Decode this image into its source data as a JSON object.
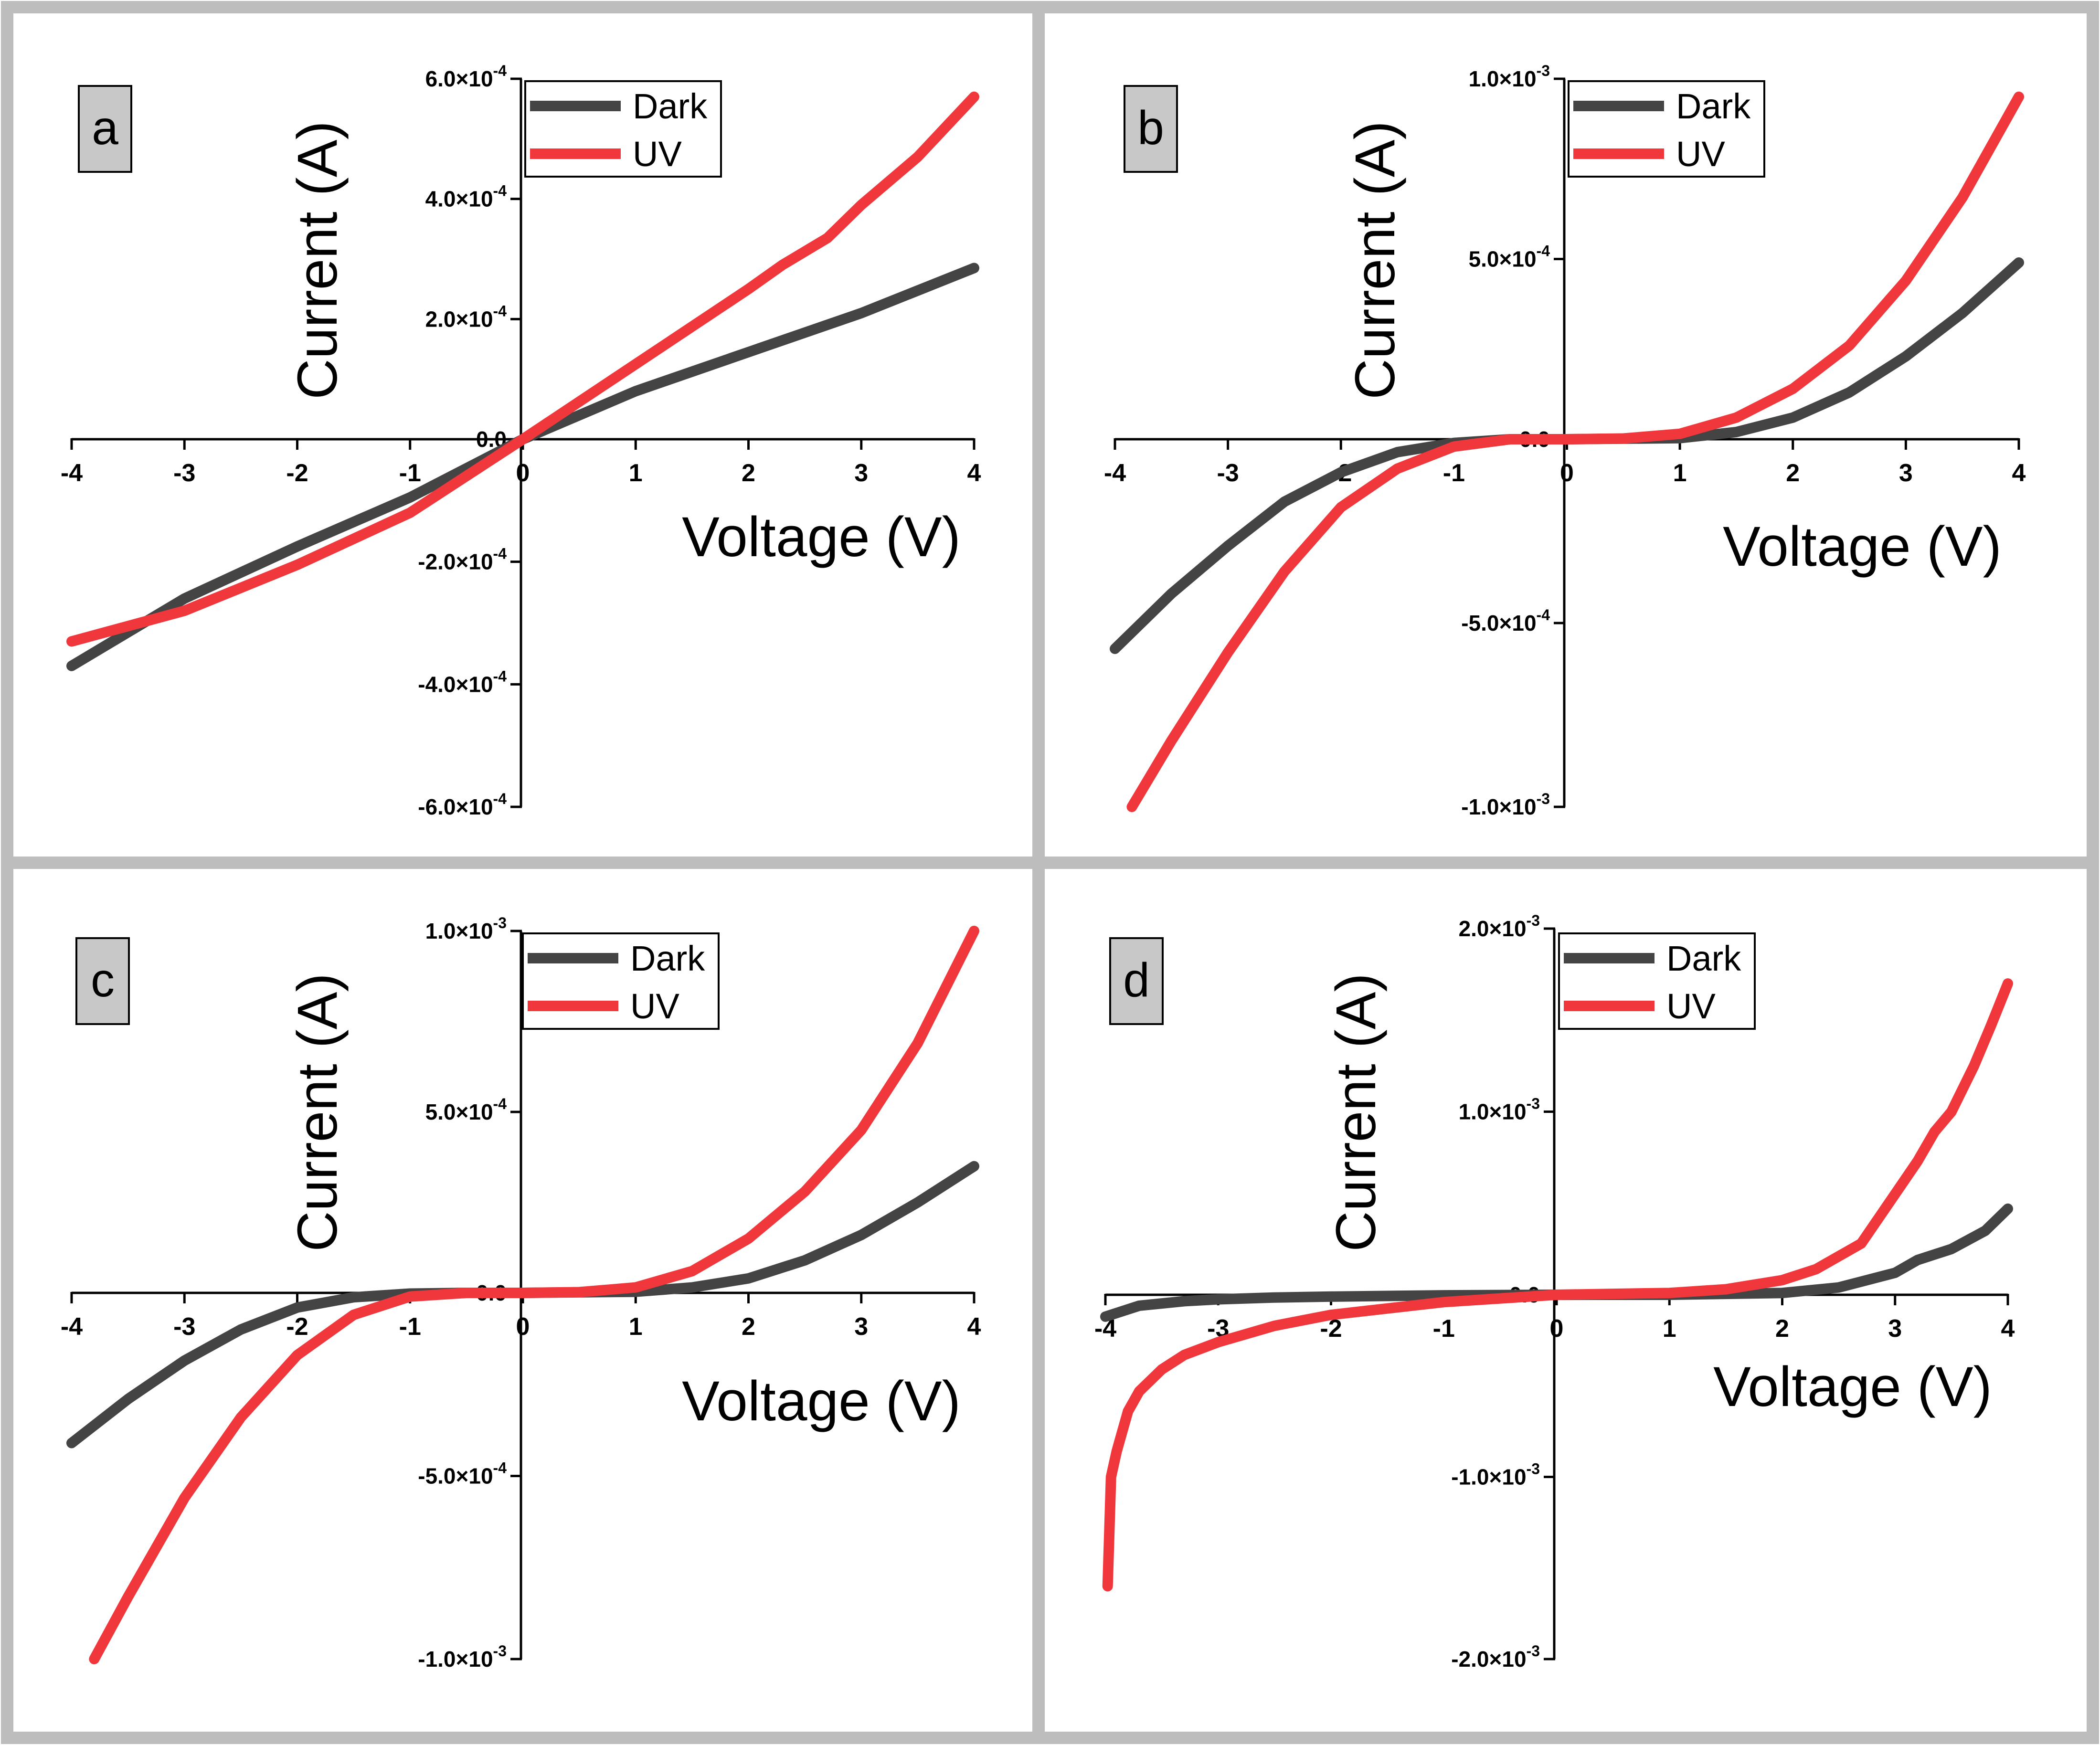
{
  "figure": {
    "colors": {
      "frame": "#bdbdbd",
      "dark": "#444444",
      "uv": "#f0373c",
      "label_bg": "#c8c8c8"
    }
  },
  "chart_data": [
    {
      "panel": "a",
      "type": "line",
      "xlabel": "Voltage (V)",
      "ylabel": "Current (A)",
      "xlim": [
        -4,
        4
      ],
      "ylim": [
        -0.0006,
        0.0006
      ],
      "xticks": [
        "-4",
        "-3",
        "-2",
        "-1",
        "0",
        "1",
        "2",
        "3",
        "4"
      ],
      "yticks": [
        {
          "v": 0.0006,
          "m": "6.0",
          "e": "-4"
        },
        {
          "v": 0.0004,
          "m": "4.0",
          "e": "-4"
        },
        {
          "v": 0.0002,
          "m": "2.0",
          "e": "-4"
        },
        {
          "v": 0.0,
          "m": "0.0",
          "e": ""
        },
        {
          "v": -0.0002,
          "m": "-2.0",
          "e": "-4"
        },
        {
          "v": -0.0004,
          "m": "-4.0",
          "e": "-4"
        },
        {
          "v": -0.0006,
          "m": "-6.0",
          "e": "-4"
        }
      ],
      "legend": [
        "Dark",
        "UV"
      ],
      "series": [
        {
          "name": "Dark",
          "x": [
            -4,
            -3,
            -2,
            -1,
            0,
            1,
            2,
            3,
            4
          ],
          "y": [
            -0.00037,
            -0.00026,
            -0.000175,
            -9.5e-05,
            0,
            8e-05,
            0.000145,
            0.00021,
            0.000285
          ]
        },
        {
          "name": "UV",
          "x": [
            -4,
            -3.5,
            -3,
            -2,
            -1,
            0,
            1,
            2,
            2.3,
            2.7,
            3,
            3.5,
            4
          ],
          "y": [
            -0.00033,
            -0.000305,
            -0.00028,
            -0.000205,
            -0.00012,
            0,
            0.000125,
            0.00025,
            0.00029,
            0.000335,
            0.00039,
            0.00047,
            0.00057
          ]
        }
      ]
    },
    {
      "panel": "b",
      "type": "line",
      "xlabel": "Voltage (V)",
      "ylabel": "Current (A)",
      "xlim": [
        -4,
        4
      ],
      "ylim": [
        -0.001,
        0.001
      ],
      "xticks": [
        "-4",
        "-3",
        "-2",
        "-1",
        "0",
        "1",
        "2",
        "3",
        "4"
      ],
      "yticks": [
        {
          "v": 0.001,
          "m": "1.0",
          "e": "-3"
        },
        {
          "v": 0.0005,
          "m": "5.0",
          "e": "-4"
        },
        {
          "v": 0.0,
          "m": "0.0",
          "e": ""
        },
        {
          "v": -0.0005,
          "m": "-5.0",
          "e": "-4"
        },
        {
          "v": -0.001,
          "m": "-1.0",
          "e": "-3"
        }
      ],
      "legend": [
        "Dark",
        "UV"
      ],
      "series": [
        {
          "name": "Dark",
          "x": [
            -4,
            -3.5,
            -3,
            -2.5,
            -2,
            -1.5,
            -1,
            -0.5,
            0,
            1,
            1.5,
            2,
            2.5,
            3,
            3.5,
            4
          ],
          "y": [
            -0.00057,
            -0.00042,
            -0.00029,
            -0.00017,
            -9e-05,
            -3.5e-05,
            -1e-05,
            0,
            0,
            3e-06,
            2e-05,
            6e-05,
            0.00013,
            0.00023,
            0.00035,
            0.00049
          ]
        },
        {
          "name": "UV",
          "x": [
            -3.85,
            -3.5,
            -3,
            -2.5,
            -2,
            -1.5,
            -1,
            -0.5,
            0,
            0.5,
            1,
            1.5,
            2,
            2.5,
            3,
            3.5,
            4
          ],
          "y": [
            -0.001,
            -0.00082,
            -0.00058,
            -0.00036,
            -0.000185,
            -8e-05,
            -2e-05,
            0,
            0,
            2e-06,
            1.5e-05,
            6e-05,
            0.00014,
            0.00026,
            0.00044,
            0.00067,
            0.00095
          ]
        }
      ]
    },
    {
      "panel": "c",
      "type": "line",
      "xlabel": "Voltage (V)",
      "ylabel": "Current (A)",
      "xlim": [
        -4,
        4
      ],
      "ylim": [
        -0.001,
        0.001
      ],
      "xticks": [
        "-4",
        "-3",
        "-2",
        "-1",
        "0",
        "1",
        "2",
        "3",
        "4"
      ],
      "yticks": [
        {
          "v": 0.001,
          "m": "1.0",
          "e": "-3"
        },
        {
          "v": 0.0005,
          "m": "5.0",
          "e": "-4"
        },
        {
          "v": 0.0,
          "m": "0.0",
          "e": ""
        },
        {
          "v": -0.0005,
          "m": "-5.0",
          "e": "-4"
        },
        {
          "v": -0.001,
          "m": "-1.0",
          "e": "-3"
        }
      ],
      "legend": [
        "Dark",
        "UV"
      ],
      "series": [
        {
          "name": "Dark",
          "x": [
            -4,
            -3.5,
            -3,
            -2.5,
            -2,
            -1.5,
            -1,
            -0.5,
            0,
            1,
            1.5,
            2,
            2.5,
            3,
            3.5,
            4
          ],
          "y": [
            -0.00041,
            -0.00029,
            -0.000185,
            -0.0001,
            -4e-05,
            -1.2e-05,
            -2e-06,
            0,
            0,
            3e-06,
            1.5e-05,
            4e-05,
            9e-05,
            0.00016,
            0.00025,
            0.00035
          ]
        },
        {
          "name": "UV",
          "x": [
            -3.8,
            -3.5,
            -3,
            -2.5,
            -2,
            -1.5,
            -1,
            -0.5,
            0,
            0.5,
            1,
            1.5,
            2,
            2.5,
            3,
            3.5,
            4
          ],
          "y": [
            -0.001,
            -0.00083,
            -0.00056,
            -0.00034,
            -0.00017,
            -6e-05,
            -1e-05,
            0,
            0,
            2e-06,
            1.5e-05,
            6e-05,
            0.00015,
            0.00028,
            0.00045,
            0.00069,
            0.001
          ]
        }
      ]
    },
    {
      "panel": "d",
      "type": "line",
      "xlabel": "Voltage (V)",
      "ylabel": "Current (A)",
      "xlim": [
        -4,
        4
      ],
      "ylim": [
        -0.002,
        0.002
      ],
      "xticks": [
        "-4",
        "-3",
        "-2",
        "-1",
        "0",
        "1",
        "2",
        "3",
        "4"
      ],
      "yticks": [
        {
          "v": 0.002,
          "m": "2.0",
          "e": "-3"
        },
        {
          "v": 0.001,
          "m": "1.0",
          "e": "-3"
        },
        {
          "v": 0.0,
          "m": "0.0",
          "e": ""
        },
        {
          "v": -0.001,
          "m": "-1.0",
          "e": "-3"
        },
        {
          "v": -0.002,
          "m": "-2.0",
          "e": "-3"
        }
      ],
      "legend": [
        "Dark",
        "UV"
      ],
      "series": [
        {
          "name": "Dark",
          "x": [
            -4,
            -3.7,
            -3.3,
            -3,
            -2.5,
            -2,
            -1,
            0,
            1,
            2,
            2.5,
            3,
            3.2,
            3.5,
            3.8,
            4
          ],
          "y": [
            -0.00012,
            -6e-05,
            -3.5e-05,
            -2.5e-05,
            -1.5e-05,
            -1e-05,
            -3e-06,
            0,
            0,
            1e-05,
            4e-05,
            0.00012,
            0.00019,
            0.00025,
            0.00035,
            0.00047
          ]
        },
        {
          "name": "UV",
          "x": [
            -3.98,
            -3.95,
            -3.9,
            -3.8,
            -3.7,
            -3.5,
            -3.3,
            -3,
            -2.5,
            -2,
            -1,
            0,
            1,
            1.5,
            2,
            2.3,
            2.7,
            3,
            3.2,
            3.35,
            3.5,
            3.7,
            3.85,
            4
          ],
          "y": [
            -0.0016,
            -0.001,
            -0.00086,
            -0.00064,
            -0.00053,
            -0.00041,
            -0.00033,
            -0.00026,
            -0.00017,
            -0.00011,
            -4e-05,
            0,
            1e-05,
            3e-05,
            8e-05,
            0.00014,
            0.00028,
            0.00055,
            0.00073,
            0.00089,
            0.001,
            0.00125,
            0.00147,
            0.0017
          ]
        }
      ]
    }
  ]
}
